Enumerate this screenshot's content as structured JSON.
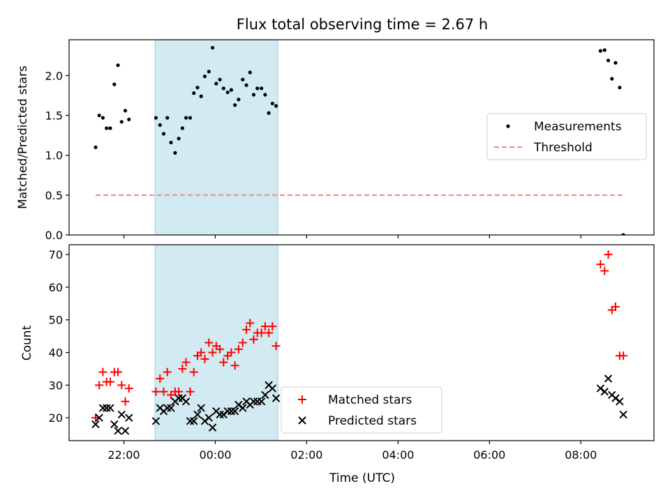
{
  "chart_data": {
    "type": "scatter",
    "title": "Flux total observing time = 2.67 h",
    "xlabel": "Time (UTC)",
    "x_unit": "hours relative to 00:00 UTC",
    "xlim": [
      -3.2,
      9.6
    ],
    "xticks": [
      -2,
      0,
      2,
      4,
      6,
      8
    ],
    "xtick_labels": [
      "22:00",
      "00:00",
      "02:00",
      "04:00",
      "06:00",
      "08:00"
    ],
    "highlight_span": {
      "x0": -1.32,
      "x1": 1.37,
      "color": "#add8e6"
    },
    "panels": [
      {
        "ylabel": "Matched/Predicted stars",
        "ylim": [
          0,
          2.45
        ],
        "yticks": [
          0.0,
          0.5,
          1.0,
          1.5,
          2.0
        ],
        "ytick_labels": [
          "0.0",
          "0.5",
          "1.0",
          "1.5",
          "2.0"
        ],
        "legend": {
          "position": "center-right",
          "entries": [
            "Measurements",
            "Threshold"
          ]
        },
        "series": [
          {
            "name": "Measurements",
            "marker": "dot",
            "color": "#000000",
            "points": [
              [
                -2.62,
                1.1
              ],
              [
                -2.54,
                1.5
              ],
              [
                -2.46,
                1.47
              ],
              [
                -2.38,
                1.34
              ],
              [
                -2.3,
                1.34
              ],
              [
                -2.21,
                1.89
              ],
              [
                -2.13,
                2.13
              ],
              [
                -2.05,
                1.42
              ],
              [
                -1.97,
                1.56
              ],
              [
                -1.89,
                1.45
              ],
              [
                -1.3,
                1.47
              ],
              [
                -1.21,
                1.38
              ],
              [
                -1.13,
                1.27
              ],
              [
                -1.05,
                1.47
              ],
              [
                -0.97,
                1.16
              ],
              [
                -0.88,
                1.03
              ],
              [
                -0.8,
                1.21
              ],
              [
                -0.72,
                1.34
              ],
              [
                -0.64,
                1.47
              ],
              [
                -0.55,
                1.47
              ],
              [
                -0.47,
                1.78
              ],
              [
                -0.39,
                1.85
              ],
              [
                -0.31,
                1.74
              ],
              [
                -0.23,
                1.99
              ],
              [
                -0.14,
                2.05
              ],
              [
                -0.06,
                2.35
              ],
              [
                0.02,
                1.9
              ],
              [
                0.1,
                1.95
              ],
              [
                0.18,
                1.84
              ],
              [
                0.27,
                1.79
              ],
              [
                0.35,
                1.82
              ],
              [
                0.43,
                1.63
              ],
              [
                0.51,
                1.7
              ],
              [
                0.6,
                1.95
              ],
              [
                0.68,
                1.88
              ],
              [
                0.76,
                2.04
              ],
              [
                0.84,
                1.76
              ],
              [
                0.92,
                1.84
              ],
              [
                1.01,
                1.84
              ],
              [
                1.09,
                1.76
              ],
              [
                1.17,
                1.53
              ],
              [
                1.25,
                1.65
              ],
              [
                1.33,
                1.62
              ],
              [
                8.43,
                2.31
              ],
              [
                8.52,
                2.32
              ],
              [
                8.6,
                2.19
              ],
              [
                8.68,
                1.96
              ],
              [
                8.76,
                2.16
              ],
              [
                8.85,
                1.85
              ],
              [
                8.93,
                0.0
              ]
            ]
          },
          {
            "name": "Threshold",
            "style": "dashed",
            "color": "#ff8080",
            "points": [
              [
                -2.62,
                0.5
              ],
              [
                8.93,
                0.5
              ]
            ]
          }
        ]
      },
      {
        "ylabel": "Count",
        "ylim": [
          13,
          73
        ],
        "yticks": [
          20,
          30,
          40,
          50,
          60,
          70
        ],
        "ytick_labels": [
          "20",
          "30",
          "40",
          "50",
          "60",
          "70"
        ],
        "legend": {
          "position": "lower-center",
          "entries": [
            "Matched stars",
            "Predicted stars"
          ]
        },
        "series": [
          {
            "name": "Matched stars",
            "marker": "plus",
            "color": "#ff0000",
            "points": [
              [
                -2.62,
                20
              ],
              [
                -2.54,
                30
              ],
              [
                -2.46,
                34
              ],
              [
                -2.38,
                31
              ],
              [
                -2.3,
                31
              ],
              [
                -2.21,
                34
              ],
              [
                -2.13,
                34
              ],
              [
                -2.05,
                30
              ],
              [
                -1.97,
                25
              ],
              [
                -1.89,
                29
              ],
              [
                -1.3,
                28
              ],
              [
                -1.21,
                32
              ],
              [
                -1.13,
                28
              ],
              [
                -1.05,
                34
              ],
              [
                -0.97,
                27
              ],
              [
                -0.88,
                28
              ],
              [
                -0.8,
                28
              ],
              [
                -0.72,
                35
              ],
              [
                -0.64,
                37
              ],
              [
                -0.55,
                28
              ],
              [
                -0.47,
                34
              ],
              [
                -0.39,
                39
              ],
              [
                -0.31,
                40
              ],
              [
                -0.23,
                38
              ],
              [
                -0.14,
                43
              ],
              [
                -0.06,
                40
              ],
              [
                0.02,
                42
              ],
              [
                0.1,
                41
              ],
              [
                0.18,
                37
              ],
              [
                0.27,
                39
              ],
              [
                0.35,
                40
              ],
              [
                0.43,
                36
              ],
              [
                0.51,
                41
              ],
              [
                0.6,
                43
              ],
              [
                0.68,
                47
              ],
              [
                0.76,
                49
              ],
              [
                0.84,
                44
              ],
              [
                0.92,
                46
              ],
              [
                1.01,
                46
              ],
              [
                1.09,
                48
              ],
              [
                1.17,
                46
              ],
              [
                1.25,
                48
              ],
              [
                1.33,
                42
              ],
              [
                8.43,
                67
              ],
              [
                8.52,
                65
              ],
              [
                8.6,
                70
              ],
              [
                8.68,
                53
              ],
              [
                8.76,
                54
              ],
              [
                8.85,
                39
              ],
              [
                8.93,
                39
              ]
            ]
          },
          {
            "name": "Predicted stars",
            "marker": "x",
            "color": "#000000",
            "points": [
              [
                -2.62,
                18
              ],
              [
                -2.54,
                20
              ],
              [
                -2.46,
                23
              ],
              [
                -2.38,
                23
              ],
              [
                -2.3,
                23
              ],
              [
                -2.21,
                18
              ],
              [
                -2.13,
                16
              ],
              [
                -2.05,
                21
              ],
              [
                -1.97,
                16
              ],
              [
                -1.89,
                20
              ],
              [
                -1.3,
                19
              ],
              [
                -1.21,
                23
              ],
              [
                -1.13,
                22
              ],
              [
                -1.05,
                23
              ],
              [
                -0.97,
                23
              ],
              [
                -0.88,
                25
              ],
              [
                -0.8,
                26
              ],
              [
                -0.72,
                26
              ],
              [
                -0.64,
                25
              ],
              [
                -0.55,
                19
              ],
              [
                -0.47,
                19
              ],
              [
                -0.39,
                21
              ],
              [
                -0.31,
                23
              ],
              [
                -0.23,
                19
              ],
              [
                -0.14,
                20
              ],
              [
                -0.06,
                17
              ],
              [
                0.02,
                22
              ],
              [
                0.1,
                21
              ],
              [
                0.18,
                21
              ],
              [
                0.27,
                22
              ],
              [
                0.35,
                22
              ],
              [
                0.43,
                22
              ],
              [
                0.51,
                24
              ],
              [
                0.6,
                23
              ],
              [
                0.68,
                25
              ],
              [
                0.76,
                24
              ],
              [
                0.84,
                25
              ],
              [
                0.92,
                25
              ],
              [
                1.01,
                25
              ],
              [
                1.09,
                27
              ],
              [
                1.17,
                30
              ],
              [
                1.25,
                29
              ],
              [
                1.33,
                26
              ],
              [
                8.43,
                29
              ],
              [
                8.52,
                28
              ],
              [
                8.6,
                32
              ],
              [
                8.68,
                27
              ],
              [
                8.76,
                26
              ],
              [
                8.85,
                25
              ],
              [
                8.93,
                21
              ]
            ]
          }
        ]
      }
    ]
  }
}
